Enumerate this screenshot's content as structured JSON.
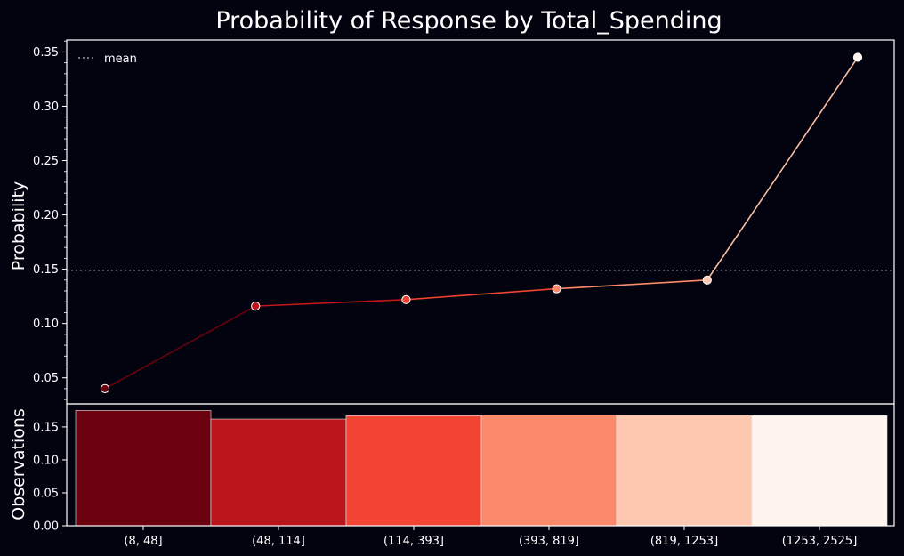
{
  "chart_data": {
    "title": "Probability of Response by Total_Spending",
    "type": "line",
    "legend": {
      "label": "mean",
      "placement": "top-left",
      "style": "dotted"
    },
    "categories": [
      "(8, 48]",
      "(48, 114]",
      "(114, 393]",
      "(393, 819]",
      "(819, 1253]",
      "(1253, 2525]"
    ],
    "line_panel": {
      "ylabel": "Probability",
      "ylim": [
        0.026,
        0.361
      ],
      "yticks": [
        "0.05",
        "0.10",
        "0.15",
        "0.20",
        "0.25",
        "0.30",
        "0.35"
      ],
      "ytick_values": [
        0.05,
        0.1,
        0.15,
        0.2,
        0.25,
        0.3,
        0.35
      ],
      "mean": 0.149,
      "x_positions": [
        0,
        1,
        2,
        3,
        4,
        5
      ],
      "values": [
        0.04,
        0.116,
        0.122,
        0.132,
        0.14,
        0.345
      ]
    },
    "bar_panel": {
      "type": "bar",
      "ylabel": "Observations",
      "ylim": [
        0,
        0.185
      ],
      "yticks": [
        "0.00",
        "0.05",
        "0.10",
        "0.15"
      ],
      "ytick_values": [
        0,
        0.05,
        0.1,
        0.15
      ],
      "values": [
        0.175,
        0.162,
        0.167,
        0.168,
        0.168,
        0.167
      ]
    },
    "colors": {
      "background": "#03020f",
      "axes": "#ffffff",
      "mean_line": "#9a9aa2",
      "bars": [
        "#6b000f",
        "#bb141a",
        "#f14432",
        "#fc8a6a",
        "#fdc7b0",
        "#fff4ee"
      ],
      "points": [
        "#6b000f",
        "#bb141a",
        "#f14432",
        "#fc8a6a",
        "#fdc7b0",
        "#fff4ee"
      ],
      "segments": [
        "#67000d",
        "#c0161b",
        "#f0442f",
        "#fc8c69",
        "#fcbfa3"
      ]
    }
  }
}
